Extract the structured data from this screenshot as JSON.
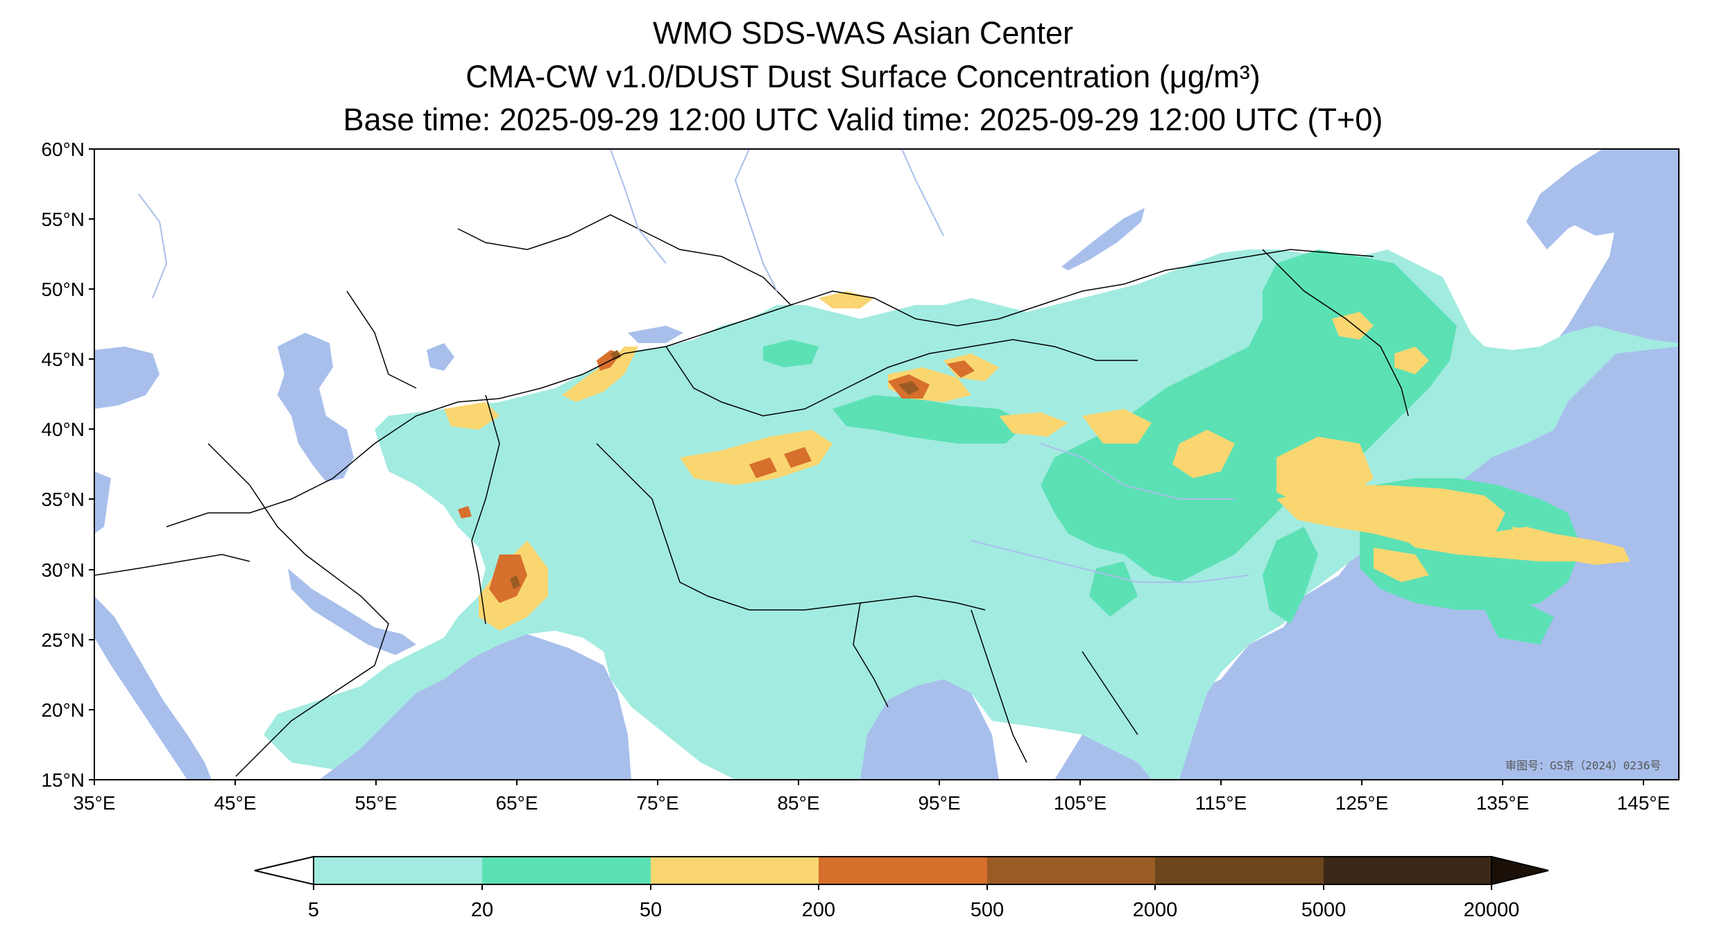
{
  "title": {
    "line1": "WMO SDS-WAS Asian Center",
    "line2": "CMA-CW v1.0/DUST Dust Surface Concentration (μg/m³)",
    "line3": "Base time: 2025-09-29 12:00 UTC Valid time: 2025-09-29 12:00 UTC (T+0)"
  },
  "map": {
    "lat_labels": [
      "60°N",
      "55°N",
      "50°N",
      "45°N",
      "40°N",
      "35°N",
      "30°N",
      "25°N",
      "20°N",
      "15°N"
    ],
    "lon_labels": [
      "35°E",
      "45°E",
      "55°E",
      "65°E",
      "75°E",
      "85°E",
      "95°E",
      "105°E",
      "115°E",
      "125°E",
      "135°E",
      "145°E"
    ],
    "lat_range": [
      15,
      60
    ],
    "lon_range": [
      35,
      150
    ],
    "approval_stamp": "审图号：GS京（2024）0236号",
    "colors": {
      "water": "#a8bfec",
      "land": "#ffffff",
      "border": "#000000",
      "river": "#a8bfec"
    }
  },
  "colorbar": {
    "ticks": [
      "5",
      "20",
      "50",
      "200",
      "500",
      "2000",
      "5000",
      "20000"
    ],
    "colors": [
      "#a2ebe0",
      "#5ce1b5",
      "#fad671",
      "#d76f2d",
      "#9b5c24",
      "#6d451e",
      "#3c2816",
      "#1a1008"
    ],
    "extend": "both"
  }
}
